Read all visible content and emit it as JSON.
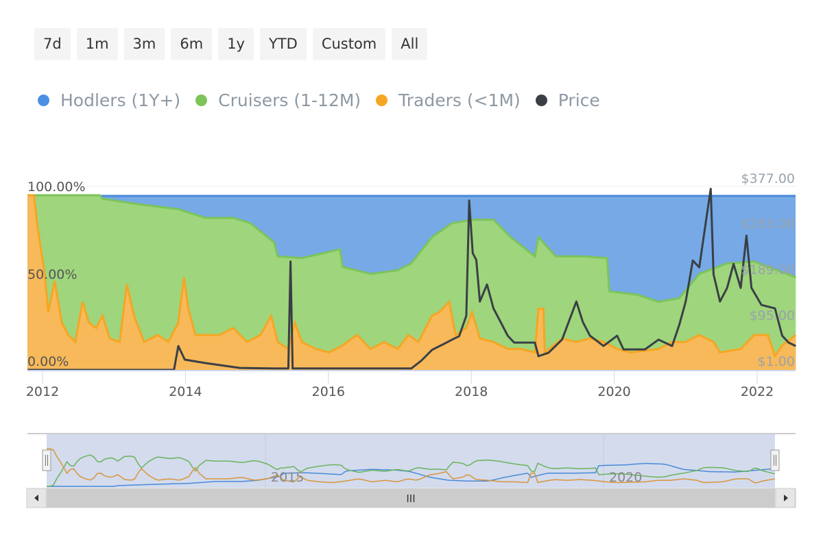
{
  "range_buttons": [
    "7d",
    "1m",
    "3m",
    "6m",
    "1y",
    "YTD",
    "Custom",
    "All"
  ],
  "legend": [
    {
      "label": "Hodlers (1Y+)",
      "color": "#4a90e2"
    },
    {
      "label": "Cruisers (1-12M)",
      "color": "#7cc45a"
    },
    {
      "label": "Traders (<1M)",
      "color": "#f5a623"
    },
    {
      "label": "Price",
      "color": "#3a3f45"
    }
  ],
  "navigator": {
    "labels": [
      "2015",
      "2020"
    ],
    "scroll_grip": "III"
  },
  "chart_data": {
    "type": "area",
    "title": "",
    "xlim": [
      2011.79,
      2022.54
    ],
    "x_ticks": [
      "2012",
      "2014",
      "2016",
      "2018",
      "2020",
      "2022"
    ],
    "y_left": {
      "ticks": [
        "0.00%",
        "50.00%",
        "100.00%"
      ],
      "ylim": [
        0,
        100
      ]
    },
    "y_right": {
      "ticks": [
        "$1.00",
        "$95.00",
        "$189.00",
        "$283.00",
        "$377.00"
      ],
      "ylim": [
        1,
        377
      ]
    },
    "series": [
      {
        "name": "Traders (<1M)",
        "unit": "%",
        "x": [
          2011.79,
          2011.88,
          2011.93,
          2012.03,
          2012.08,
          2012.17,
          2012.27,
          2012.36,
          2012.46,
          2012.56,
          2012.65,
          2012.75,
          2012.84,
          2012.94,
          2013.08,
          2013.18,
          2013.28,
          2013.42,
          2013.61,
          2013.76,
          2013.9,
          2013.98,
          2014.04,
          2014.14,
          2014.28,
          2014.48,
          2014.67,
          2014.86,
          2015.05,
          2015.2,
          2015.29,
          2015.44,
          2015.53,
          2015.63,
          2015.82,
          2016.01,
          2016.2,
          2016.4,
          2016.59,
          2016.78,
          2016.97,
          2017.12,
          2017.26,
          2017.45,
          2017.55,
          2017.69,
          2017.78,
          2017.93,
          2018.01,
          2018.12,
          2018.31,
          2018.51,
          2018.7,
          2018.89,
          2018.94,
          2019.01,
          2019.03,
          2019.27,
          2019.47,
          2019.66,
          2019.85,
          2020.04,
          2020.23,
          2020.43,
          2020.62,
          2020.81,
          2021.0,
          2021.19,
          2021.39,
          2021.48,
          2021.77,
          2021.96,
          2022.15,
          2022.25,
          2022.35,
          2022.54
        ],
        "values": [
          100,
          100,
          82,
          55,
          33,
          51,
          27,
          20,
          16,
          39,
          27,
          24,
          31,
          18,
          16,
          49,
          31,
          16,
          20,
          16,
          27,
          53,
          35,
          20,
          20,
          20,
          24,
          16,
          20,
          31,
          16,
          12,
          27,
          16,
          12,
          10,
          14,
          20,
          12,
          16,
          12,
          20,
          16,
          31,
          33,
          39,
          20,
          24,
          33,
          18,
          16,
          12,
          12,
          10,
          35,
          35,
          10,
          18,
          16,
          18,
          16,
          12,
          10,
          11,
          12,
          16,
          16,
          20,
          16,
          10,
          12,
          20,
          20,
          8,
          14,
          20
        ]
      },
      {
        "name": "Cruisers (1-12M)",
        "unit": "%",
        "x": [
          2011.79,
          2012.8,
          2012.84,
          2013.32,
          2013.9,
          2014.28,
          2014.67,
          2014.91,
          2015.24,
          2015.29,
          2015.63,
          2016.16,
          2016.2,
          2016.59,
          2016.97,
          2017.16,
          2017.45,
          2017.73,
          2018.03,
          2018.31,
          2018.55,
          2018.89,
          2018.94,
          2019.18,
          2019.56,
          2019.9,
          2019.93,
          2020.33,
          2020.62,
          2020.91,
          2021.19,
          2021.58,
          2021.96,
          2022.54
        ],
        "values_cumulative": [
          100,
          100,
          98,
          95,
          92,
          87,
          87,
          84,
          73,
          65,
          64,
          69,
          59,
          55,
          57,
          61,
          76,
          84,
          86,
          86,
          76,
          65,
          76,
          65,
          65,
          64,
          45,
          43,
          39,
          41,
          55,
          61,
          62,
          53
        ]
      },
      {
        "name": "Hodlers (1Y+)",
        "unit": "%",
        "note": "fills to 100%"
      },
      {
        "name": "Price",
        "unit": "$",
        "x": [
          2011.79,
          2013.84,
          2013.9,
          2013.99,
          2014.28,
          2014.76,
          2015.24,
          2015.44,
          2015.47,
          2015.5,
          2016.2,
          2017.16,
          2017.3,
          2017.45,
          2017.64,
          2017.73,
          2017.83,
          2017.93,
          2017.97,
          2018.02,
          2018.07,
          2018.12,
          2018.22,
          2018.31,
          2018.41,
          2018.51,
          2018.6,
          2018.7,
          2018.89,
          2018.94,
          2019.08,
          2019.27,
          2019.47,
          2019.56,
          2019.66,
          2019.85,
          2020.04,
          2020.13,
          2020.43,
          2020.62,
          2020.81,
          2020.91,
          2021.0,
          2021.1,
          2021.19,
          2021.29,
          2021.35,
          2021.39,
          2021.48,
          2021.58,
          2021.67,
          2021.77,
          2021.85,
          2021.92,
          2022.06,
          2022.25,
          2022.35,
          2022.44,
          2022.54
        ],
        "values": [
          1,
          1,
          50,
          22,
          15,
          5,
          4,
          4,
          223,
          4,
          4,
          4,
          20,
          42,
          56,
          63,
          70,
          112,
          348,
          240,
          226,
          141,
          176,
          127,
          99,
          71,
          57,
          57,
          57,
          29,
          36,
          63,
          141,
          99,
          71,
          50,
          71,
          43,
          43,
          63,
          50,
          93,
          141,
          225,
          211,
          312,
          372,
          197,
          141,
          169,
          218,
          169,
          276,
          169,
          134,
          127,
          71,
          57,
          50
        ]
      }
    ]
  }
}
